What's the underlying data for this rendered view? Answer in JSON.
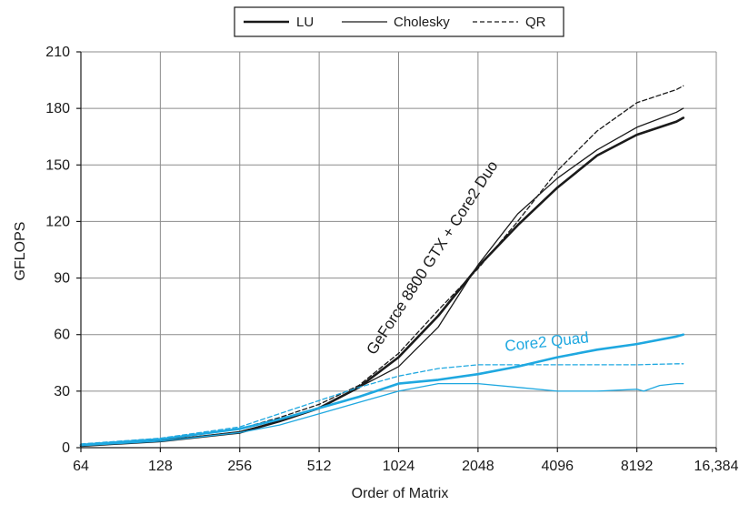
{
  "chart_data": {
    "type": "line",
    "xlabel": "Order of Matrix",
    "ylabel": "GFLOPS",
    "x_scale": "log2",
    "xlim": [
      64,
      16384
    ],
    "ylim": [
      0,
      210
    ],
    "grid": true,
    "legend_position": "top-center",
    "x_ticks": [
      64,
      128,
      256,
      512,
      1024,
      2048,
      4096,
      8192,
      16384
    ],
    "x_tick_labels": [
      "64",
      "128",
      "256",
      "512",
      "1024",
      "2048",
      "4096",
      "8192",
      "16,384"
    ],
    "y_ticks": [
      0,
      30,
      60,
      90,
      120,
      150,
      180,
      210
    ],
    "y_tick_labels": [
      "0",
      "30",
      "60",
      "90",
      "120",
      "150",
      "180",
      "210"
    ],
    "legend": [
      {
        "label": "LU",
        "style": "thick"
      },
      {
        "label": "Cholesky",
        "style": "thin"
      },
      {
        "label": "QR",
        "style": "dashed"
      }
    ],
    "annotations": [
      {
        "text": "GeForce 8800 GTX + Core2 Duo",
        "color": "#1a1a1a"
      },
      {
        "text": "Core2 Quad",
        "color": "#1fa8e0"
      }
    ],
    "colors": {
      "gpu": "#1a1a1a",
      "cpu": "#1fa8e0"
    },
    "series": [
      {
        "group": "GeForce 8800 GTX + Core2 Duo",
        "method": "LU",
        "style": "thick",
        "color": "#1a1a1a",
        "points": [
          [
            64,
            1
          ],
          [
            128,
            3.5
          ],
          [
            256,
            8
          ],
          [
            362,
            14
          ],
          [
            512,
            21
          ],
          [
            724,
            32
          ],
          [
            1024,
            48
          ],
          [
            1448,
            70
          ],
          [
            2048,
            96
          ],
          [
            2896,
            118
          ],
          [
            4096,
            138
          ],
          [
            5793,
            155
          ],
          [
            8192,
            166
          ],
          [
            11585,
            173
          ],
          [
            12288,
            175
          ]
        ]
      },
      {
        "group": "GeForce 8800 GTX + Core2 Duo",
        "method": "Cholesky",
        "style": "thin",
        "color": "#1a1a1a",
        "points": [
          [
            64,
            1
          ],
          [
            128,
            3.5
          ],
          [
            256,
            8.5
          ],
          [
            362,
            14
          ],
          [
            512,
            21
          ],
          [
            724,
            32
          ],
          [
            1024,
            43
          ],
          [
            1448,
            64
          ],
          [
            2048,
            97
          ],
          [
            2896,
            124
          ],
          [
            4096,
            143
          ],
          [
            5793,
            158
          ],
          [
            8192,
            170
          ],
          [
            11585,
            178
          ],
          [
            12288,
            180
          ]
        ]
      },
      {
        "group": "GeForce 8800 GTX + Core2 Duo",
        "method": "QR",
        "style": "dashed",
        "color": "#1a1a1a",
        "points": [
          [
            64,
            1
          ],
          [
            128,
            4
          ],
          [
            256,
            10
          ],
          [
            362,
            16
          ],
          [
            512,
            23
          ],
          [
            724,
            33
          ],
          [
            1024,
            50
          ],
          [
            1448,
            73
          ],
          [
            2048,
            95
          ],
          [
            2896,
            120
          ],
          [
            4096,
            147
          ],
          [
            5793,
            168
          ],
          [
            8192,
            183
          ],
          [
            11585,
            190
          ],
          [
            12288,
            192
          ]
        ]
      },
      {
        "group": "Core2 Quad",
        "method": "LU",
        "style": "thick",
        "color": "#1fa8e0",
        "points": [
          [
            64,
            1.5
          ],
          [
            128,
            4.5
          ],
          [
            256,
            10
          ],
          [
            362,
            15
          ],
          [
            512,
            21
          ],
          [
            724,
            27
          ],
          [
            1024,
            34
          ],
          [
            1448,
            36
          ],
          [
            2048,
            39
          ],
          [
            2896,
            43
          ],
          [
            4096,
            48
          ],
          [
            5793,
            52
          ],
          [
            8192,
            55
          ],
          [
            11585,
            59
          ],
          [
            12288,
            60
          ]
        ]
      },
      {
        "group": "Core2 Quad",
        "method": "Cholesky",
        "style": "thin",
        "color": "#1fa8e0",
        "points": [
          [
            64,
            1
          ],
          [
            128,
            3.5
          ],
          [
            256,
            8
          ],
          [
            362,
            12
          ],
          [
            512,
            18
          ],
          [
            724,
            24
          ],
          [
            1024,
            30
          ],
          [
            1448,
            34
          ],
          [
            2048,
            34
          ],
          [
            2896,
            32
          ],
          [
            4096,
            30
          ],
          [
            5793,
            30
          ],
          [
            8192,
            31
          ],
          [
            8700,
            30
          ],
          [
            10000,
            33
          ],
          [
            11585,
            34
          ],
          [
            12288,
            34
          ]
        ]
      },
      {
        "group": "Core2 Quad",
        "method": "QR",
        "style": "dashed",
        "color": "#1fa8e0",
        "points": [
          [
            64,
            2
          ],
          [
            128,
            5
          ],
          [
            256,
            11
          ],
          [
            362,
            18
          ],
          [
            512,
            25
          ],
          [
            724,
            32
          ],
          [
            1024,
            38
          ],
          [
            1448,
            42
          ],
          [
            2048,
            44
          ],
          [
            2896,
            44
          ],
          [
            4096,
            44
          ],
          [
            5793,
            44
          ],
          [
            8192,
            44
          ],
          [
            11585,
            44.5
          ],
          [
            12288,
            44.5
          ]
        ]
      }
    ]
  }
}
